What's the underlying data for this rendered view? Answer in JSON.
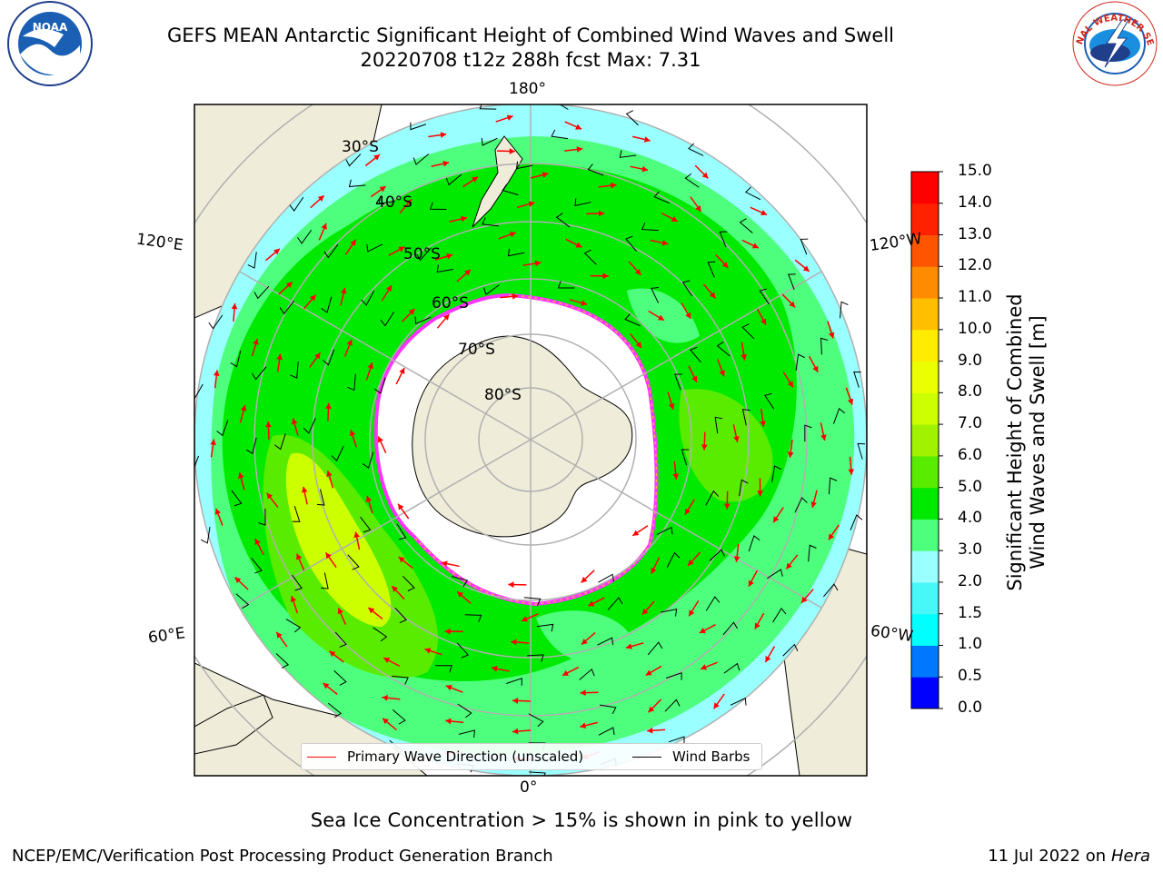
{
  "title": {
    "line1": "GEFS MEAN Antarctic Significant Height of Combined Wind Waves and Swell",
    "line2": "20220708 t12z 288h fcst   Max: 7.31"
  },
  "logos": {
    "left": "NOAA",
    "right": "NATIONAL WEATHER SERVICE"
  },
  "longitude_labels": {
    "top": "180°",
    "bottom": "0°",
    "upper_left": "120°E",
    "upper_right": "120°W",
    "lower_left": "60°E",
    "lower_right": "60°W"
  },
  "latitude_labels": [
    "30°S",
    "40°S",
    "50°S",
    "60°S",
    "70°S",
    "80°S"
  ],
  "legend": {
    "wave_label": "Primary Wave Direction (unscaled)",
    "wind_label": "Wind Barbs",
    "wave_color": "#ff0000",
    "wind_color": "#000000"
  },
  "colorbar": {
    "title_line1": "Significant Height of Combined",
    "title_line2": "Wind Waves and Swell [m]",
    "ticks": [
      "15.0",
      "14.0",
      "13.0",
      "12.0",
      "11.0",
      "10.0",
      "9.0",
      "8.0",
      "7.0",
      "6.0",
      "5.0",
      "4.0",
      "3.0",
      "2.0",
      "1.5",
      "1.0",
      "0.5",
      "0.0"
    ],
    "colors_bottom_to_top": [
      "#0000ff",
      "#0077ff",
      "#00ffff",
      "#48f7f7",
      "#99ffff",
      "#4dff7c",
      "#00ea00",
      "#5aec00",
      "#a1f200",
      "#ccff00",
      "#eaff00",
      "#ffec00",
      "#ffbf00",
      "#ff8c00",
      "#ff5500",
      "#ff2200",
      "#ff0000"
    ]
  },
  "caption": "Sea Ice Concentration > 15% is shown in pink to yellow",
  "footer": {
    "left": "NCEP/EMC/Verification Post Processing Product Generation Branch",
    "right_prefix": "11 Jul 2022 on ",
    "right_italic": "Hera"
  },
  "colors": {
    "land": "#efedd9",
    "ice_edge": "#ff33ff",
    "ice_inner": "#ffffff",
    "grid": "#b0b0b0"
  }
}
